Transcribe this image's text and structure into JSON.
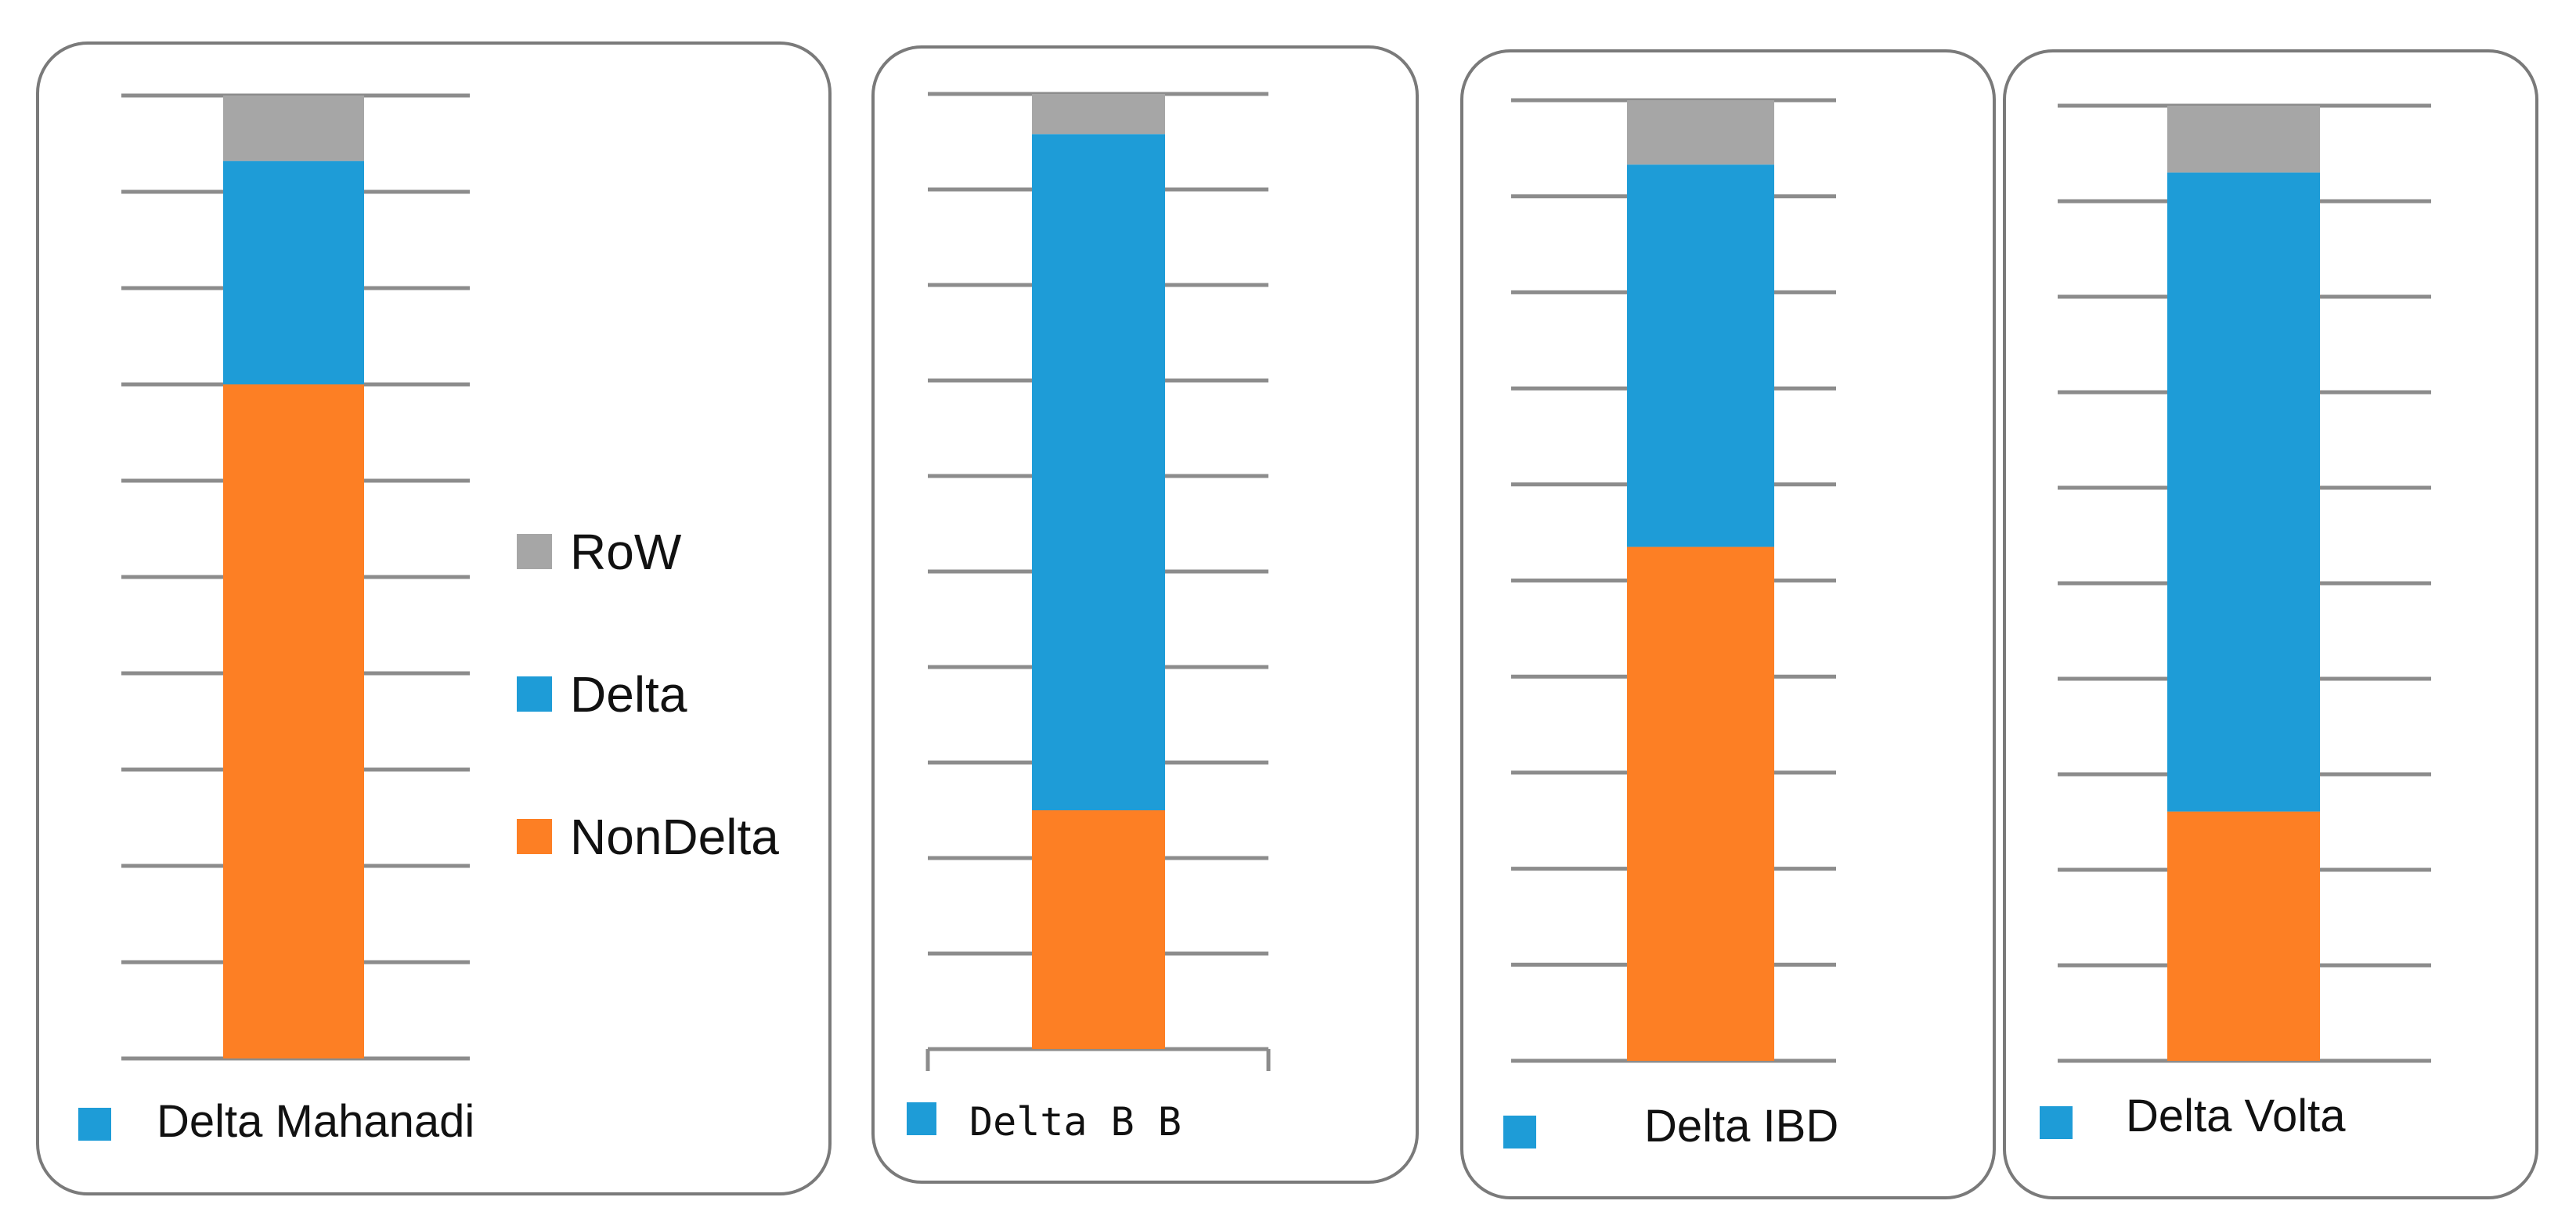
{
  "chart_data": {
    "type": "bar",
    "stacked": true,
    "normalized": true,
    "legend": {
      "placement": "right of first panel",
      "entries": [
        {
          "key": "row",
          "label": "RoW",
          "color": "#a6a6a6"
        },
        {
          "key": "delta",
          "label": "Delta",
          "color": "#1e9cd7"
        },
        {
          "key": "nondelta",
          "label": "NonDelta",
          "color": "#fd7f24"
        }
      ]
    },
    "panels": [
      {
        "title": "Delta Mahanadi",
        "marker_color": "#1e9cd7",
        "ylim": [
          0,
          100
        ],
        "gridlines": 10,
        "values": {
          "nondelta": 70,
          "delta": 23.2,
          "row": 6.8
        }
      },
      {
        "title": "Delta  B B",
        "marker_color": "#1e9cd7",
        "ylim": [
          0,
          100
        ],
        "gridlines": 10,
        "values": {
          "nondelta": 25,
          "delta": 70.8,
          "row": 4.2
        }
      },
      {
        "title": "Delta IBD",
        "marker_color": "#1e9cd7",
        "ylim": [
          0,
          100
        ],
        "gridlines": 10,
        "values": {
          "nondelta": 53.5,
          "delta": 39.8,
          "row": 6.7
        }
      },
      {
        "title": "Delta Volta",
        "marker_color": "#1e9cd7",
        "ylim": [
          0,
          100
        ],
        "gridlines": 10,
        "values": {
          "nondelta": 26.1,
          "delta": 66.9,
          "row": 7
        }
      }
    ]
  }
}
